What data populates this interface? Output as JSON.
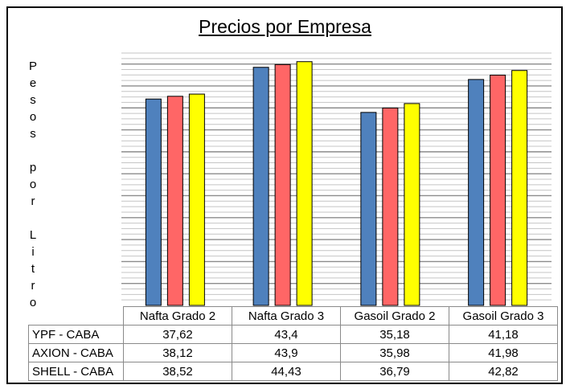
{
  "chart_data": {
    "type": "bar",
    "title": "Precios por Empresa",
    "ylabel": "Pesos por Litro",
    "ylim": [
      0,
      46
    ],
    "grid": true,
    "categories": [
      "Nafta Grado 2",
      "Nafta Grado 3",
      "Gasoil Grado 2",
      "Gasoil Grado 3"
    ],
    "series": [
      {
        "name": "YPF - CABA",
        "color": "#4f81bd",
        "values": [
          37.62,
          43.4,
          35.18,
          41.18
        ],
        "labels": [
          "37,62",
          "43,4",
          "35,18",
          "41,18"
        ]
      },
      {
        "name": "AXION - CABA",
        "color": "#ff6666",
        "values": [
          38.12,
          43.9,
          35.98,
          41.98
        ],
        "labels": [
          "38,12",
          "43,9",
          "35,98",
          "41,98"
        ]
      },
      {
        "name": "SHELL - CABA",
        "color": "#ffff00",
        "values": [
          38.52,
          44.43,
          36.79,
          42.82
        ],
        "labels": [
          "38,52",
          "44,43",
          "36,79",
          "42,82"
        ]
      }
    ]
  }
}
